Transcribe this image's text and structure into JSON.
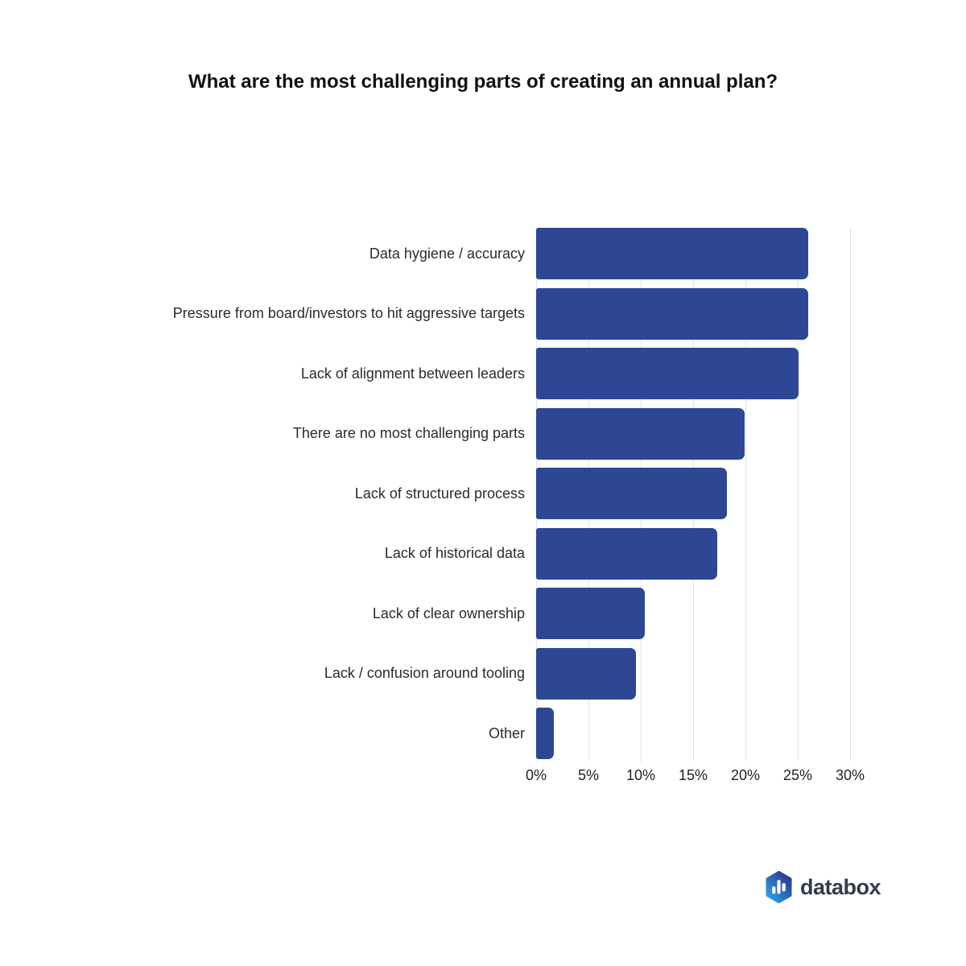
{
  "title": "What are the most challenging parts of creating an annual plan?",
  "chart_data": {
    "type": "bar",
    "orientation": "horizontal",
    "title": "What are the most challenging parts of creating an annual plan?",
    "categories": [
      "Data hygiene / accuracy",
      "Pressure from board/investors to hit aggressive targets",
      "Lack of alignment between leaders",
      "There are no most challenging parts",
      "Lack of structured process",
      "Lack of historical data",
      "Lack of clear ownership",
      "Lack / confusion around tooling",
      "Other"
    ],
    "values": [
      26.0,
      26.0,
      25.1,
      19.9,
      18.2,
      17.3,
      10.4,
      9.5,
      1.7
    ],
    "value_unit": "%",
    "xlabel": "",
    "ylabel": "",
    "x_ticks": [
      "0%",
      "5%",
      "10%",
      "15%",
      "20%",
      "25%",
      "30%"
    ],
    "xlim": [
      0,
      30
    ],
    "grid": true,
    "legend": false,
    "bar_color": "#2d4795",
    "gridline_color": "#e2e2e2"
  },
  "branding": {
    "logo_text": "databox",
    "logo_icon": "bar-chart-hexagon-icon",
    "colors": {
      "logo_text_color": "#333a4d",
      "logo_gradient_start": "#29368f",
      "logo_gradient_end": "#2f9fe9",
      "logo_bars_color": "#ffffff"
    }
  }
}
